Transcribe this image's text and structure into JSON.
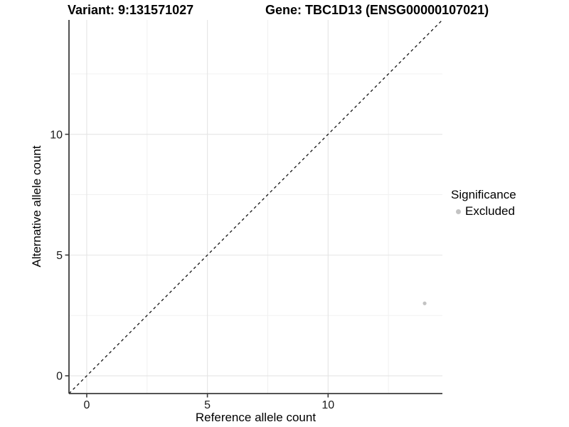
{
  "chart_data": {
    "type": "scatter",
    "title_left": "Variant: 9:131571027",
    "title_right": "Gene: TBC1D13 (ENSG00000107021)",
    "xlabel": "Reference allele count",
    "ylabel": "Alternative allele count",
    "xlim": [
      -0.735,
      14.735
    ],
    "ylim": [
      -0.735,
      14.735
    ],
    "x_major_ticks": [
      0,
      5,
      10
    ],
    "y_major_ticks": [
      0,
      5,
      10
    ],
    "x_minor_ticks": [
      2.5,
      7.5,
      12.5
    ],
    "y_minor_ticks": [
      2.5,
      7.5,
      12.5
    ],
    "grid": true,
    "identity_line": {
      "style": "dashed",
      "from": [
        -0.735,
        -0.735
      ],
      "to": [
        14.735,
        14.735
      ],
      "color": "#111111"
    },
    "series": [
      {
        "name": "Excluded",
        "color": "#c3c3c3",
        "points": [
          {
            "x": 14,
            "y": 3
          }
        ]
      }
    ],
    "legend": {
      "title": "Significance",
      "position": "right",
      "items": [
        {
          "label": "Excluded",
          "color": "#c3c3c3",
          "marker": "circle"
        }
      ]
    },
    "colors": {
      "background": "#ffffff",
      "axis": "#3c3c3c",
      "grid_major": "#e4e4e4",
      "grid_minor": "#f1f1f1",
      "text": "#000000",
      "tick_text": "#1a1a1a"
    }
  }
}
